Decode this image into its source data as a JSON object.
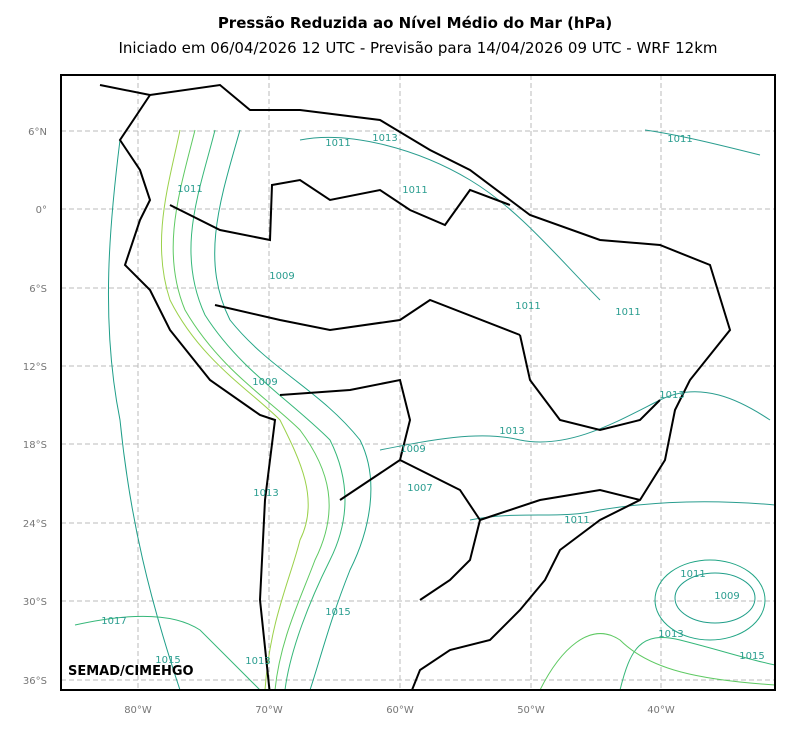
{
  "header": {
    "title": "Pressão Reduzida ao Nível Médio do Mar (hPa)",
    "subtitle": "Iniciado em 06/04/2026 12 UTC - Previsão para 14/04/2026 09 UTC - WRF 12km"
  },
  "map": {
    "lon_ticks": [
      "80°W",
      "70°W",
      "60°W",
      "50°W",
      "40°W"
    ],
    "lat_ticks": [
      "6°N",
      "0°",
      "6°S",
      "12°S",
      "18°S",
      "24°S",
      "30°S",
      "36°S"
    ],
    "contour_labels": [
      "1011",
      "1011",
      "1013",
      "1011",
      "1011",
      "1009",
      "1011",
      "1011",
      "1009",
      "1013",
      "1013",
      "1009",
      "1007",
      "1013",
      "1011",
      "1011",
      "1009",
      "1017",
      "1015",
      "1013",
      "1015",
      "1015",
      "1013"
    ],
    "credit": "SEMAD/CIMEHGO"
  }
}
